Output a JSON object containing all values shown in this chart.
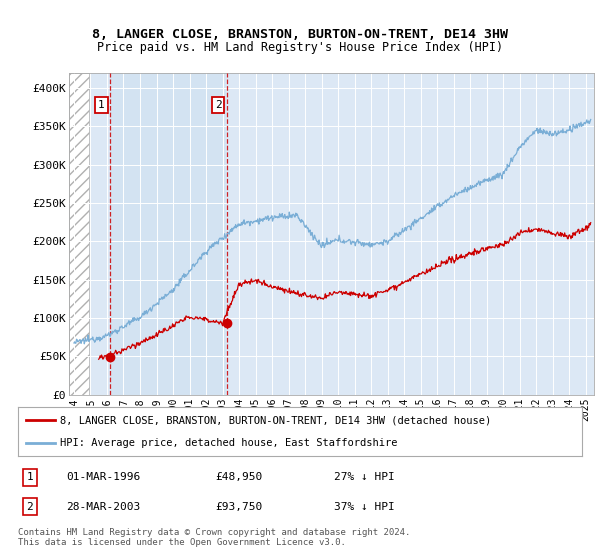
{
  "title1": "8, LANGER CLOSE, BRANSTON, BURTON-ON-TRENT, DE14 3HW",
  "title2": "Price paid vs. HM Land Registry's House Price Index (HPI)",
  "ylabel_ticks": [
    "£0",
    "£50K",
    "£100K",
    "£150K",
    "£200K",
    "£250K",
    "£300K",
    "£350K",
    "£400K"
  ],
  "ytick_vals": [
    0,
    50000,
    100000,
    150000,
    200000,
    250000,
    300000,
    350000,
    400000
  ],
  "ylim": [
    0,
    420000
  ],
  "xlim_start": 1993.7,
  "xlim_end": 2025.5,
  "sale1_date": 1996.17,
  "sale1_price": 48950,
  "sale2_date": 2003.24,
  "sale2_price": 93750,
  "legend_line1": "8, LANGER CLOSE, BRANSTON, BURTON-ON-TRENT, DE14 3HW (detached house)",
  "legend_line2": "HPI: Average price, detached house, East Staffordshire",
  "table_row1_num": "1",
  "table_row1_date": "01-MAR-1996",
  "table_row1_price": "£48,950",
  "table_row1_hpi": "27% ↓ HPI",
  "table_row2_num": "2",
  "table_row2_date": "28-MAR-2003",
  "table_row2_price": "£93,750",
  "table_row2_hpi": "37% ↓ HPI",
  "footnote": "Contains HM Land Registry data © Crown copyright and database right 2024.\nThis data is licensed under the Open Government Licence v3.0.",
  "price_color": "#cc0000",
  "hpi_color": "#7aaed6",
  "background_plot": "#dce8f5",
  "shade_color": "#dce8f5",
  "hatch_color": "#cccccc",
  "grid_color": "#ffffff"
}
